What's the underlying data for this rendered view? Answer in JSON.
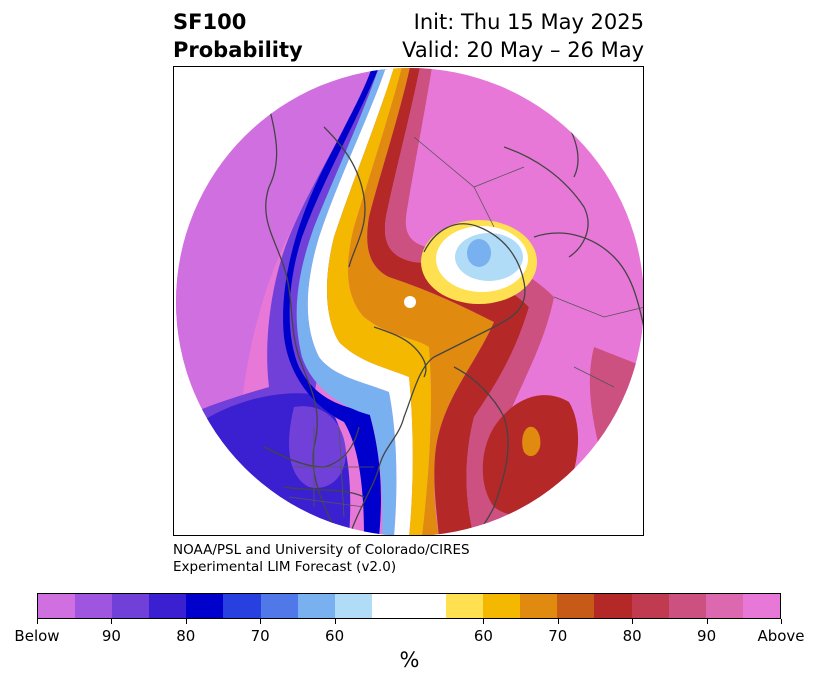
{
  "header": {
    "title_line1": "SF100",
    "title_line2": "Probability",
    "init": "Init: Thu 15 May 2025",
    "valid": "Valid: 20 May – 26 May"
  },
  "credit": {
    "line1": "NOAA/PSL and University of Colorado/CIRES",
    "line2": "Experimental LIM Forecast (v2.0)"
  },
  "colorbar": {
    "unit": "%",
    "colors": [
      "#d070e0",
      "#a055e0",
      "#7040d8",
      "#3a20d0",
      "#0000cc",
      "#2840e0",
      "#5078e8",
      "#78b0f0",
      "#b0dcf8",
      "#ffffff",
      "#ffffff",
      "#ffe050",
      "#f5b800",
      "#e08a10",
      "#c85a18",
      "#b42828",
      "#c03a50",
      "#cc5080",
      "#dc68b0",
      "#e878d8"
    ],
    "ticks": [
      "Below",
      "90",
      "80",
      "70",
      "60",
      "60",
      "70",
      "80",
      "90",
      "Above"
    ]
  },
  "map": {
    "projection": "polar stereographic, Northern Hemisphere",
    "colors": {
      "far_below": "#d070e0",
      "below_90": "#7040d8",
      "below_80": "#3a20d0",
      "below_70": "#0000cc",
      "below_60": "#78b0f0",
      "neutral": "#ffffff",
      "above_60": "#f5b800",
      "above_70": "#e08a10",
      "above_80": "#b42828",
      "above_90": "#cc5080",
      "far_above": "#e878d8"
    }
  }
}
